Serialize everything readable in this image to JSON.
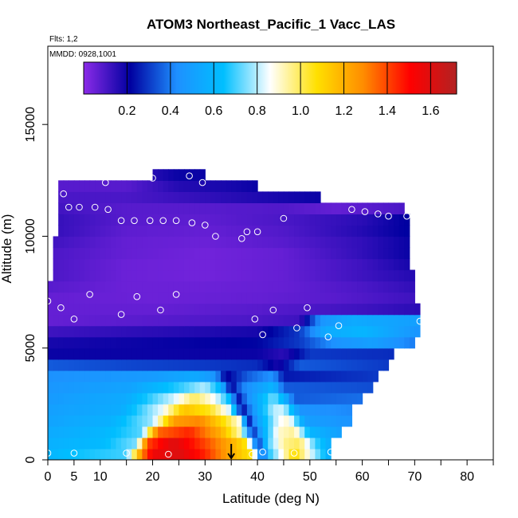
{
  "chart_data": {
    "type": "heatmap",
    "title": "ATOM3 Northeast_Pacific_1 Vacc_LAS",
    "flights_label": "Flts: 1,2",
    "dates_label": "MMDD: 0928,1001",
    "xlabel": "Latitude (deg N)",
    "ylabel": "Altitude (m)",
    "xlim": [
      0,
      85
    ],
    "ylim": [
      0,
      18500
    ],
    "x_ticks": [
      0,
      5,
      10,
      20,
      30,
      40,
      50,
      60,
      70,
      80
    ],
    "y_ticks": [
      0,
      5000,
      10000,
      15000
    ],
    "colorbar": {
      "range": [
        0,
        1.72
      ],
      "ticks": [
        0.2,
        0.4,
        0.6,
        0.8,
        1.0,
        1.2,
        1.4,
        1.6
      ],
      "tick_labels": [
        "0.2",
        "0.4",
        "0.6",
        "0.8",
        "1.0",
        "1.2",
        "1.4",
        "1.6"
      ],
      "colors": [
        "#8B2BE8",
        "#0000A0",
        "#1E90FF",
        "#00BFFF",
        "#FFFFFF",
        "#FFE000",
        "#FF8C00",
        "#FF0000",
        "#B22222"
      ]
    },
    "marker_latitude": 35,
    "field_rows": [
      {
        "alt": 250,
        "lat_min": 0,
        "lat_max": 54,
        "values": [
          [
            0,
            0.6
          ],
          [
            5,
            0.65
          ],
          [
            15,
            0.7
          ],
          [
            18,
            1.3
          ],
          [
            20,
            1.55
          ],
          [
            25,
            1.6
          ],
          [
            30,
            1.45
          ],
          [
            35,
            1.2
          ],
          [
            39,
            1.05
          ],
          [
            41,
            0.25
          ],
          [
            42,
            0.65
          ],
          [
            45,
            0.9
          ],
          [
            47,
            1.1
          ],
          [
            50,
            0.85
          ],
          [
            54,
            0.55
          ]
        ]
      },
      {
        "alt": 750,
        "lat_min": 0,
        "lat_max": 54,
        "values": [
          [
            0,
            0.58
          ],
          [
            10,
            0.62
          ],
          [
            17,
            0.75
          ],
          [
            19,
            1.4
          ],
          [
            24,
            1.6
          ],
          [
            30,
            1.4
          ],
          [
            35,
            1.2
          ],
          [
            38,
            1.05
          ],
          [
            40,
            0.25
          ],
          [
            42,
            0.7
          ],
          [
            45,
            0.95
          ],
          [
            48,
            1.0
          ],
          [
            51,
            0.7
          ],
          [
            54,
            0.55
          ]
        ]
      },
      {
        "alt": 1250,
        "lat_min": 0,
        "lat_max": 56,
        "values": [
          [
            0,
            0.55
          ],
          [
            10,
            0.6
          ],
          [
            18,
            0.72
          ],
          [
            21,
            1.35
          ],
          [
            27,
            1.45
          ],
          [
            33,
            1.2
          ],
          [
            37,
            0.9
          ],
          [
            39,
            0.25
          ],
          [
            41,
            0.55
          ],
          [
            44,
            0.9
          ],
          [
            47,
            0.95
          ],
          [
            50,
            0.6
          ],
          [
            56,
            0.5
          ]
        ]
      },
      {
        "alt": 1750,
        "lat_min": 0,
        "lat_max": 58,
        "values": [
          [
            0,
            0.52
          ],
          [
            12,
            0.58
          ],
          [
            20,
            0.78
          ],
          [
            24,
            1.25
          ],
          [
            29,
            1.3
          ],
          [
            34,
            1.05
          ],
          [
            37,
            0.85
          ],
          [
            38,
            0.2
          ],
          [
            40,
            0.5
          ],
          [
            44,
            0.85
          ],
          [
            46,
            0.9
          ],
          [
            49,
            0.5
          ],
          [
            58,
            0.45
          ]
        ]
      },
      {
        "alt": 2250,
        "lat_min": 0,
        "lat_max": 58,
        "values": [
          [
            0,
            0.5
          ],
          [
            14,
            0.56
          ],
          [
            22,
            0.85
          ],
          [
            26,
            1.15
          ],
          [
            31,
            1.05
          ],
          [
            35,
            0.8
          ],
          [
            37,
            0.2
          ],
          [
            39,
            0.45
          ],
          [
            43,
            0.8
          ],
          [
            45,
            0.82
          ],
          [
            48,
            0.45
          ],
          [
            58,
            0.42
          ]
        ]
      },
      {
        "alt": 2750,
        "lat_min": 0,
        "lat_max": 60,
        "values": [
          [
            0,
            0.48
          ],
          [
            15,
            0.55
          ],
          [
            24,
            0.82
          ],
          [
            28,
            1.0
          ],
          [
            32,
            0.85
          ],
          [
            35,
            0.6
          ],
          [
            36,
            0.2
          ],
          [
            38,
            0.42
          ],
          [
            43,
            0.75
          ],
          [
            45,
            0.6
          ],
          [
            47,
            0.35
          ],
          [
            60,
            0.38
          ]
        ]
      },
      {
        "alt": 3250,
        "lat_min": 0,
        "lat_max": 62,
        "values": [
          [
            0,
            0.46
          ],
          [
            16,
            0.52
          ],
          [
            26,
            0.7
          ],
          [
            30,
            0.8
          ],
          [
            33,
            0.6
          ],
          [
            35,
            0.2
          ],
          [
            37,
            0.4
          ],
          [
            43,
            0.6
          ],
          [
            45,
            0.35
          ],
          [
            62,
            0.33
          ]
        ]
      },
      {
        "alt": 3750,
        "lat_min": 0,
        "lat_max": 63,
        "values": [
          [
            0,
            0.44
          ],
          [
            20,
            0.48
          ],
          [
            28,
            0.55
          ],
          [
            32,
            0.45
          ],
          [
            34,
            0.2
          ],
          [
            38,
            0.35
          ],
          [
            43,
            0.45
          ],
          [
            45,
            0.25
          ],
          [
            63,
            0.3
          ]
        ]
      },
      {
        "alt": 4250,
        "lat_min": 0,
        "lat_max": 65,
        "values": [
          [
            0,
            0.35
          ],
          [
            15,
            0.32
          ],
          [
            30,
            0.3
          ],
          [
            40,
            0.28
          ],
          [
            44,
            0.18
          ],
          [
            48,
            0.35
          ],
          [
            65,
            0.3
          ]
        ]
      },
      {
        "alt": 4750,
        "lat_min": 0,
        "lat_max": 66,
        "values": [
          [
            0,
            0.2
          ],
          [
            20,
            0.2
          ],
          [
            40,
            0.2
          ],
          [
            45,
            0.15
          ],
          [
            50,
            0.3
          ],
          [
            66,
            0.28
          ]
        ]
      },
      {
        "alt": 5250,
        "lat_min": 0,
        "lat_max": 70,
        "values": [
          [
            0,
            0.18
          ],
          [
            20,
            0.2
          ],
          [
            40,
            0.22
          ],
          [
            48,
            0.3
          ],
          [
            55,
            0.45
          ],
          [
            62,
            0.5
          ],
          [
            70,
            0.4
          ]
        ]
      },
      {
        "alt": 5750,
        "lat_min": 0,
        "lat_max": 71,
        "values": [
          [
            0,
            0.12
          ],
          [
            20,
            0.15
          ],
          [
            40,
            0.18
          ],
          [
            48,
            0.3
          ],
          [
            53,
            0.55
          ],
          [
            60,
            0.6
          ],
          [
            71,
            0.45
          ]
        ]
      },
      {
        "alt": 6250,
        "lat_min": 0,
        "lat_max": 71,
        "values": [
          [
            0,
            0.06
          ],
          [
            20,
            0.08
          ],
          [
            40,
            0.1
          ],
          [
            48,
            0.12
          ],
          [
            52,
            0.45
          ],
          [
            58,
            0.55
          ],
          [
            71,
            0.5
          ]
        ]
      },
      {
        "alt": 6750,
        "lat_min": 0,
        "lat_max": 71,
        "values": [
          [
            0,
            0.06
          ],
          [
            20,
            0.06
          ],
          [
            40,
            0.08
          ],
          [
            50,
            0.1
          ],
          [
            60,
            0.12
          ],
          [
            71,
            0.15
          ]
        ]
      },
      {
        "alt": 7250,
        "lat_min": 0,
        "lat_max": 70,
        "values": [
          [
            0,
            0.06
          ],
          [
            20,
            0.05
          ],
          [
            40,
            0.06
          ],
          [
            55,
            0.08
          ],
          [
            70,
            0.12
          ]
        ]
      },
      {
        "alt": 7750,
        "lat_min": 0,
        "lat_max": 70,
        "values": [
          [
            0,
            0.08
          ],
          [
            15,
            0.05
          ],
          [
            30,
            0.05
          ],
          [
            45,
            0.06
          ],
          [
            60,
            0.1
          ],
          [
            70,
            0.14
          ]
        ]
      },
      {
        "alt": 8250,
        "lat_min": 1,
        "lat_max": 70,
        "values": [
          [
            0,
            0.1
          ],
          [
            15,
            0.05
          ],
          [
            30,
            0.04
          ],
          [
            45,
            0.06
          ],
          [
            60,
            0.12
          ],
          [
            70,
            0.16
          ]
        ]
      },
      {
        "alt": 8750,
        "lat_min": 1,
        "lat_max": 69,
        "values": [
          [
            0,
            0.1
          ],
          [
            15,
            0.05
          ],
          [
            30,
            0.04
          ],
          [
            45,
            0.06
          ],
          [
            60,
            0.12
          ],
          [
            69,
            0.18
          ]
        ]
      },
      {
        "alt": 9250,
        "lat_min": 1,
        "lat_max": 69,
        "values": [
          [
            0,
            0.1
          ],
          [
            15,
            0.06
          ],
          [
            30,
            0.04
          ],
          [
            45,
            0.06
          ],
          [
            60,
            0.14
          ],
          [
            69,
            0.2
          ]
        ]
      },
      {
        "alt": 9750,
        "lat_min": 1,
        "lat_max": 69,
        "values": [
          [
            0,
            0.12
          ],
          [
            15,
            0.06
          ],
          [
            30,
            0.05
          ],
          [
            45,
            0.08
          ],
          [
            60,
            0.14
          ],
          [
            69,
            0.2
          ]
        ]
      },
      {
        "alt": 10250,
        "lat_min": 2,
        "lat_max": 69,
        "values": [
          [
            0,
            0.14
          ],
          [
            15,
            0.07
          ],
          [
            30,
            0.06
          ],
          [
            45,
            0.09
          ],
          [
            60,
            0.16
          ],
          [
            69,
            0.22
          ]
        ]
      },
      {
        "alt": 10750,
        "lat_min": 2,
        "lat_max": 69,
        "values": [
          [
            0,
            0.14
          ],
          [
            15,
            0.08
          ],
          [
            30,
            0.07
          ],
          [
            45,
            0.1
          ],
          [
            60,
            0.15
          ],
          [
            69,
            0.22
          ]
        ]
      },
      {
        "alt": 11250,
        "lat_min": 2,
        "lat_max": 68,
        "values": [
          [
            0,
            0.12
          ],
          [
            15,
            0.08
          ],
          [
            30,
            0.08
          ],
          [
            45,
            0.09
          ],
          [
            55,
            0.06
          ],
          [
            68,
            0.1
          ]
        ]
      },
      {
        "alt": 11750,
        "lat_min": 2,
        "lat_max": 52,
        "values": [
          [
            0,
            0.1
          ],
          [
            15,
            0.1
          ],
          [
            30,
            0.14
          ],
          [
            45,
            0.18
          ],
          [
            52,
            0.2
          ]
        ]
      },
      {
        "alt": 12250,
        "lat_min": 2,
        "lat_max": 40,
        "values": [
          [
            0,
            0.08
          ],
          [
            15,
            0.08
          ],
          [
            25,
            0.16
          ],
          [
            35,
            0.18
          ],
          [
            40,
            0.2
          ]
        ]
      },
      {
        "alt": 12750,
        "lat_min": 20,
        "lat_max": 30,
        "values": [
          [
            20,
            0.16
          ],
          [
            25,
            0.2
          ],
          [
            30,
            0.2
          ]
        ]
      }
    ],
    "points": [
      [
        0,
        300
      ],
      [
        5,
        300
      ],
      [
        15,
        300
      ],
      [
        23,
        250
      ],
      [
        39,
        250
      ],
      [
        41,
        350
      ],
      [
        47,
        300
      ],
      [
        54,
        350
      ],
      [
        0,
        7100
      ],
      [
        2.5,
        6800
      ],
      [
        5,
        6300
      ],
      [
        8,
        7400
      ],
      [
        14,
        6500
      ],
      [
        17,
        7300
      ],
      [
        21.5,
        6700
      ],
      [
        24.5,
        7400
      ],
      [
        39.5,
        6300
      ],
      [
        41,
        5600
      ],
      [
        43,
        6700
      ],
      [
        47.5,
        5900
      ],
      [
        49.5,
        6800
      ],
      [
        53.5,
        5500
      ],
      [
        55.5,
        6000
      ],
      [
        71,
        6200
      ],
      [
        3,
        11900
      ],
      [
        4,
        11300
      ],
      [
        6,
        11300
      ],
      [
        9,
        11300
      ],
      [
        11.5,
        11200
      ],
      [
        14,
        10700
      ],
      [
        16.5,
        10700
      ],
      [
        19.5,
        10700
      ],
      [
        22,
        10700
      ],
      [
        24.5,
        10700
      ],
      [
        27.5,
        10600
      ],
      [
        30,
        10500
      ],
      [
        32,
        10000
      ],
      [
        37,
        9900
      ],
      [
        38,
        10200
      ],
      [
        40,
        10200
      ],
      [
        45,
        10800
      ],
      [
        58,
        11200
      ],
      [
        60.5,
        11100
      ],
      [
        63,
        11000
      ],
      [
        65,
        10900
      ],
      [
        68.5,
        10900
      ],
      [
        11,
        12400
      ],
      [
        20,
        12600
      ],
      [
        27,
        12700
      ],
      [
        29.5,
        12400
      ]
    ]
  }
}
